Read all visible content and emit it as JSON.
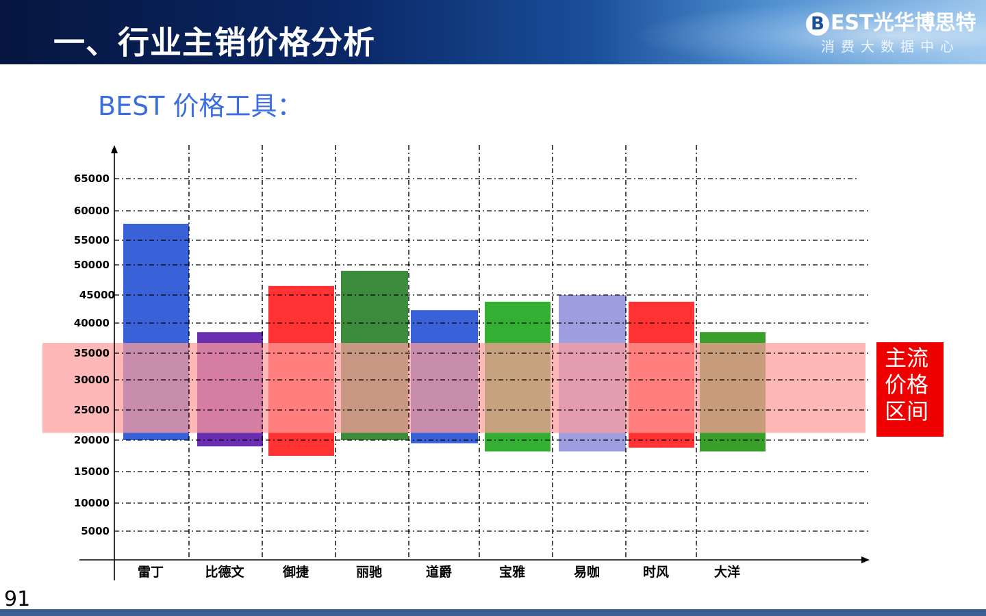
{
  "header": {
    "title": "一、行业主销价格分析",
    "logo_letter": "B",
    "logo_text": "EST光华博思特",
    "logo_subtitle": "消费大数据中心"
  },
  "subtitle": "BEST 价格工具：",
  "page_number": "91",
  "band_label": "主流\n价格\n区间",
  "colors": {
    "band": "#ff9c9c",
    "band_label_bg": "#ee0000",
    "subtitle": "#3b6fe0"
  },
  "chart_data": {
    "type": "bar",
    "subtype": "floating-range",
    "categories": [
      "雷丁",
      "比德文",
      "御捷",
      "丽驰",
      "道爵",
      "宝雅",
      "易咖",
      "时风",
      "大洋"
    ],
    "yticks": [
      5000,
      10000,
      15000,
      20000,
      25000,
      30000,
      35000,
      40000,
      45000,
      50000,
      55000,
      60000,
      65000
    ],
    "ranges": [
      {
        "low": 20000,
        "high": 57800,
        "color": "#3a62d8"
      },
      {
        "low": 19000,
        "high": 38500,
        "color": "#6a2fb0"
      },
      {
        "low": 17500,
        "high": 46500,
        "color": "#ff3333"
      },
      {
        "low": 20000,
        "high": 49000,
        "color": "#3d8c3d"
      },
      {
        "low": 19500,
        "high": 42300,
        "color": "#3a62d8"
      },
      {
        "low": 18200,
        "high": 43800,
        "color": "#33b033"
      },
      {
        "low": 18200,
        "high": 45000,
        "color": "#9e9ee0"
      },
      {
        "low": 18800,
        "high": 43800,
        "color": "#ff3333"
      },
      {
        "low": 18200,
        "high": 38500,
        "color": "#3a9e2a"
      }
    ],
    "band": {
      "low": 21200,
      "high": 36700
    },
    "grid": true,
    "xlabel": "",
    "ylabel": "",
    "title": ""
  }
}
